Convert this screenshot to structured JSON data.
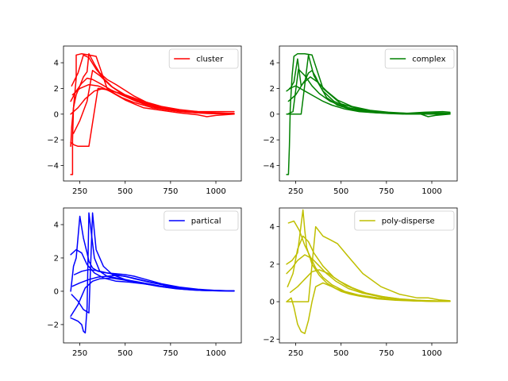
{
  "chart_data": [
    {
      "type": "line",
      "title": "",
      "xlabel": "",
      "ylabel": "",
      "xlim": [
        160,
        1140
      ],
      "ylim": [
        -5.2,
        5.3
      ],
      "xticks": [
        250,
        500,
        750,
        1000
      ],
      "yticks": [
        -4,
        -2,
        0,
        2,
        4
      ],
      "legend": {
        "placement": "top-right",
        "entries": [
          "cluster"
        ]
      },
      "color": "#ff0000",
      "grid": false,
      "series": [
        {
          "name": "cluster",
          "x": [
            200,
            210,
            210,
            215,
            230,
            230,
            260,
            300,
            340,
            400,
            500,
            600,
            700,
            800,
            900,
            1000,
            1100
          ],
          "y": [
            -4.7,
            -4.7,
            -2.0,
            0.5,
            2.8,
            4.6,
            4.7,
            4.6,
            4.5,
            2.0,
            1.4,
            0.9,
            0.5,
            0.3,
            0.2,
            0.2,
            0.2
          ]
        },
        {
          "name": "",
          "x": [
            200,
            205,
            215,
            230,
            250,
            270,
            290,
            300,
            330,
            360,
            400,
            450,
            550,
            650,
            750,
            850,
            950,
            1050,
            1100
          ],
          "y": [
            -2.5,
            -1.0,
            0.5,
            1.5,
            2.2,
            2.9,
            3.3,
            4.7,
            3.9,
            3.2,
            2.7,
            2.3,
            1.4,
            0.7,
            0.35,
            0.2,
            0.1,
            0.05,
            0.05
          ]
        },
        {
          "name": "",
          "x": [
            200,
            220,
            240,
            260,
            280,
            300,
            350,
            400,
            500,
            600,
            700,
            800,
            900,
            1000,
            1100
          ],
          "y": [
            -2.2,
            -2.4,
            -2.5,
            -2.5,
            -2.5,
            -2.5,
            2.0,
            1.9,
            1.5,
            1.0,
            0.6,
            0.35,
            0.2,
            0.1,
            0.05
          ]
        },
        {
          "name": "",
          "x": [
            200,
            230,
            260,
            290,
            320,
            360,
            420,
            480,
            560,
            650,
            750,
            850,
            950,
            1050,
            1100
          ],
          "y": [
            1.0,
            1.8,
            2.4,
            2.8,
            2.7,
            2.4,
            1.9,
            1.5,
            1.0,
            0.6,
            0.35,
            0.2,
            0.1,
            0.05,
            0.05
          ]
        },
        {
          "name": "",
          "x": [
            205,
            240,
            270,
            300,
            340,
            380,
            430,
            500,
            600,
            700,
            800,
            900,
            1000,
            1100
          ],
          "y": [
            2.2,
            3.2,
            4.6,
            4.4,
            3.5,
            2.8,
            2.1,
            1.5,
            0.9,
            0.5,
            0.3,
            0.15,
            0.08,
            0.05
          ]
        },
        {
          "name": "",
          "x": [
            210,
            250,
            300,
            350,
            400,
            450,
            500,
            550,
            600,
            700,
            800,
            900,
            950,
            1000,
            1100
          ],
          "y": [
            1.5,
            2.0,
            2.3,
            2.2,
            1.9,
            1.5,
            1.1,
            0.8,
            0.5,
            0.3,
            0.1,
            -0.05,
            -0.2,
            -0.1,
            0.0
          ]
        },
        {
          "name": "",
          "x": [
            200,
            240,
            280,
            330,
            380,
            430,
            480,
            550,
            650,
            750,
            850,
            950,
            1050,
            1100
          ],
          "y": [
            0.0,
            0.5,
            1.2,
            1.8,
            2.0,
            1.7,
            1.3,
            0.9,
            0.5,
            0.3,
            0.15,
            0.05,
            0.02,
            0.0
          ]
        },
        {
          "name": "",
          "x": [
            215,
            250,
            290,
            320,
            360,
            420,
            500,
            600,
            700,
            800,
            900,
            1000,
            1100
          ],
          "y": [
            -1.5,
            -0.5,
            1.0,
            3.4,
            3.0,
            2.2,
            1.4,
            0.8,
            0.4,
            0.2,
            0.1,
            0.05,
            0.03
          ]
        }
      ]
    },
    {
      "type": "line",
      "title": "",
      "xlabel": "",
      "ylabel": "",
      "xlim": [
        160,
        1140
      ],
      "ylim": [
        -5.2,
        5.3
      ],
      "xticks": [
        250,
        500,
        750,
        1000
      ],
      "yticks": [
        -4,
        -2,
        0,
        2,
        4
      ],
      "legend": {
        "placement": "top-right",
        "entries": [
          "complex"
        ]
      },
      "color": "#008000",
      "grid": false,
      "series": [
        {
          "name": "complex",
          "x": [
            200,
            210,
            215,
            220,
            230,
            240,
            260,
            300,
            340,
            400,
            500,
            600,
            700,
            800,
            900,
            1000,
            1100
          ],
          "y": [
            -4.7,
            -4.7,
            -2.5,
            0.5,
            3.0,
            4.5,
            4.7,
            4.7,
            4.6,
            2.0,
            0.8,
            0.4,
            0.2,
            0.1,
            0.05,
            0.05,
            0.05
          ]
        },
        {
          "name": "",
          "x": [
            200,
            220,
            240,
            260,
            280,
            300,
            320,
            340,
            360,
            380,
            420,
            480,
            560,
            660,
            760,
            860,
            960,
            1060,
            1100
          ],
          "y": [
            1.8,
            2.0,
            2.5,
            4.3,
            2.2,
            2.6,
            3.2,
            3.4,
            2.9,
            2.3,
            1.3,
            0.7,
            0.35,
            0.15,
            0.05,
            0.0,
            0.0,
            0.0,
            0.0
          ]
        },
        {
          "name": "",
          "x": [
            200,
            240,
            280,
            320,
            350,
            400,
            460,
            540,
            640,
            740,
            840,
            940,
            980,
            1020,
            1100
          ],
          "y": [
            0.0,
            0.0,
            0.0,
            4.6,
            3.0,
            1.8,
            1.0,
            0.5,
            0.25,
            0.12,
            0.05,
            0.0,
            -0.2,
            -0.1,
            0.0
          ]
        },
        {
          "name": "",
          "x": [
            210,
            250,
            290,
            330,
            370,
            420,
            480,
            560,
            660,
            760,
            860,
            960,
            1060,
            1100
          ],
          "y": [
            1.0,
            1.5,
            2.4,
            2.9,
            2.5,
            1.8,
            1.1,
            0.6,
            0.3,
            0.15,
            0.07,
            0.15,
            0.2,
            0.15
          ]
        },
        {
          "name": "",
          "x": [
            205,
            235,
            265,
            300,
            340,
            380,
            440,
            520,
            620,
            720,
            820,
            920,
            1020,
            1100
          ],
          "y": [
            0.0,
            0.2,
            3.5,
            3.0,
            2.2,
            1.6,
            1.0,
            0.55,
            0.28,
            0.12,
            0.05,
            0.05,
            0.1,
            0.08
          ]
        },
        {
          "name": "",
          "x": [
            215,
            250,
            300,
            350,
            400,
            450,
            520,
            600,
            700,
            800,
            900,
            1000,
            1100
          ],
          "y": [
            2.0,
            2.2,
            1.8,
            1.4,
            1.0,
            0.7,
            0.4,
            0.2,
            0.1,
            0.05,
            0.02,
            0.0,
            0.0
          ]
        }
      ]
    },
    {
      "type": "line",
      "title": "",
      "xlabel": "",
      "ylabel": "",
      "xlim": [
        160,
        1140
      ],
      "ylim": [
        -3.1,
        5.0
      ],
      "xticks": [
        250,
        500,
        750,
        1000
      ],
      "yticks": [
        -2,
        0,
        2,
        4
      ],
      "legend": {
        "placement": "top-right",
        "entries": [
          "partical"
        ]
      },
      "color": "#0000ff",
      "grid": false,
      "series": [
        {
          "name": "partical",
          "x": [
            200,
            215,
            230,
            250,
            270,
            290,
            300,
            320,
            350,
            400,
            450,
            500,
            550,
            600,
            650,
            700,
            800,
            900,
            1000,
            1100
          ],
          "y": [
            0.0,
            1.5,
            2.0,
            4.5,
            3.2,
            2.3,
            1.8,
            1.4,
            1.2,
            1.1,
            1.05,
            1.0,
            0.9,
            0.75,
            0.6,
            0.45,
            0.25,
            0.12,
            0.05,
            0.02
          ]
        },
        {
          "name": "",
          "x": [
            200,
            220,
            240,
            260,
            270,
            280,
            290,
            300,
            330,
            360,
            400,
            500,
            600,
            700,
            800,
            900,
            1000,
            1100
          ],
          "y": [
            -1.6,
            -1.7,
            -1.8,
            -2.0,
            -2.4,
            -2.5,
            -1.0,
            4.7,
            2.0,
            1.2,
            0.9,
            0.7,
            0.5,
            0.3,
            0.15,
            0.08,
            0.04,
            0.02
          ]
        },
        {
          "name": "",
          "x": [
            200,
            230,
            260,
            290,
            330,
            380,
            450,
            520,
            600,
            700,
            800,
            900,
            1000,
            1100
          ],
          "y": [
            2.2,
            2.5,
            2.3,
            1.6,
            1.1,
            0.8,
            0.6,
            0.55,
            0.45,
            0.3,
            0.15,
            0.07,
            0.03,
            0.02
          ]
        },
        {
          "name": "",
          "x": [
            205,
            240,
            270,
            300,
            320,
            340,
            380,
            430,
            500,
            580,
            680,
            780,
            880,
            980,
            1100
          ],
          "y": [
            -0.2,
            -0.6,
            -1.1,
            -1.3,
            4.7,
            2.5,
            1.5,
            1.0,
            0.7,
            0.5,
            0.3,
            0.15,
            0.07,
            0.03,
            0.02
          ]
        },
        {
          "name": "",
          "x": [
            210,
            250,
            300,
            350,
            400,
            450,
            500,
            550,
            650,
            750,
            850,
            950,
            1050,
            1100
          ],
          "y": [
            0.3,
            0.5,
            0.7,
            0.85,
            0.9,
            0.95,
            0.9,
            0.75,
            0.5,
            0.3,
            0.15,
            0.07,
            0.03,
            0.02
          ]
        },
        {
          "name": "",
          "x": [
            200,
            240,
            280,
            320,
            360,
            420,
            480,
            560,
            640,
            720,
            820,
            920,
            1020,
            1100
          ],
          "y": [
            -1.5,
            -0.8,
            0.2,
            0.6,
            0.75,
            0.8,
            0.7,
            0.55,
            0.4,
            0.25,
            0.12,
            0.05,
            0.02,
            0.02
          ]
        },
        {
          "name": "",
          "x": [
            220,
            260,
            300,
            340,
            400,
            470,
            540,
            620,
            720,
            820,
            920,
            1020,
            1100
          ],
          "y": [
            1.0,
            1.2,
            1.3,
            1.25,
            1.1,
            0.95,
            0.8,
            0.6,
            0.35,
            0.18,
            0.08,
            0.03,
            0.02
          ]
        }
      ]
    },
    {
      "type": "line",
      "title": "",
      "xlabel": "",
      "ylabel": "",
      "xlim": [
        160,
        1140
      ],
      "ylim": [
        -2.2,
        5.0
      ],
      "xticks": [
        250,
        500,
        750,
        1000
      ],
      "yticks": [
        -2,
        0,
        2,
        4
      ],
      "legend": {
        "placement": "top-right",
        "entries": [
          "poly-disperse"
        ]
      },
      "color": "#bfbf00",
      "grid": false,
      "series": [
        {
          "name": "poly-disperse",
          "x": [
            200,
            225,
            240,
            260,
            280,
            300,
            320,
            340,
            360,
            400,
            450,
            500,
            550,
            600,
            700,
            800,
            900,
            1000,
            1100
          ],
          "y": [
            0.0,
            0.2,
            -0.3,
            -1.2,
            -1.6,
            -1.7,
            -1.0,
            0.0,
            0.8,
            1.0,
            0.8,
            0.55,
            0.4,
            0.3,
            0.15,
            0.08,
            0.04,
            0.02,
            0.02
          ]
        },
        {
          "name": "",
          "x": [
            200,
            230,
            260,
            290,
            300,
            310,
            340,
            380,
            420,
            470,
            540,
            620,
            720,
            820,
            920,
            1020,
            1100
          ],
          "y": [
            2.0,
            2.2,
            2.6,
            4.9,
            3.8,
            2.9,
            2.0,
            1.4,
            1.0,
            0.7,
            0.45,
            0.28,
            0.15,
            0.08,
            0.04,
            0.02,
            0.02
          ]
        },
        {
          "name": "",
          "x": [
            200,
            240,
            280,
            320,
            360,
            400,
            440,
            480,
            540,
            620,
            720,
            820,
            920,
            980,
            1040,
            1100
          ],
          "y": [
            0.0,
            0.0,
            0.0,
            0.0,
            4.0,
            3.5,
            3.3,
            3.1,
            2.4,
            1.5,
            0.8,
            0.4,
            0.2,
            0.2,
            0.1,
            0.05
          ]
        },
        {
          "name": "",
          "x": [
            205,
            235,
            260,
            290,
            320,
            350,
            400,
            460,
            530,
            620,
            720,
            820,
            920,
            1020,
            1100
          ],
          "y": [
            0.8,
            1.5,
            2.8,
            3.5,
            3.2,
            2.6,
            1.9,
            1.3,
            0.85,
            0.5,
            0.28,
            0.15,
            0.08,
            0.04,
            0.02
          ]
        },
        {
          "name": "",
          "x": [
            210,
            240,
            270,
            300,
            330,
            360,
            400,
            450,
            520,
            600,
            700,
            800,
            900,
            1000,
            1100
          ],
          "y": [
            4.2,
            4.3,
            3.8,
            3.0,
            2.4,
            1.8,
            1.3,
            0.9,
            0.55,
            0.35,
            0.2,
            0.1,
            0.05,
            0.02,
            0.02
          ]
        },
        {
          "name": "",
          "x": [
            200,
            230,
            260,
            300,
            340,
            380,
            420,
            470,
            540,
            620,
            720,
            820,
            920,
            1020,
            1100
          ],
          "y": [
            1.5,
            1.8,
            2.2,
            2.5,
            2.3,
            1.9,
            1.5,
            1.1,
            0.7,
            0.45,
            0.25,
            0.13,
            0.06,
            0.03,
            0.02
          ]
        },
        {
          "name": "",
          "x": [
            220,
            260,
            300,
            340,
            380,
            430,
            490,
            560,
            640,
            740,
            840,
            940,
            1040,
            1100
          ],
          "y": [
            0.5,
            0.8,
            1.2,
            1.6,
            1.7,
            1.5,
            1.1,
            0.75,
            0.45,
            0.25,
            0.12,
            0.06,
            0.03,
            0.02
          ]
        }
      ]
    }
  ]
}
